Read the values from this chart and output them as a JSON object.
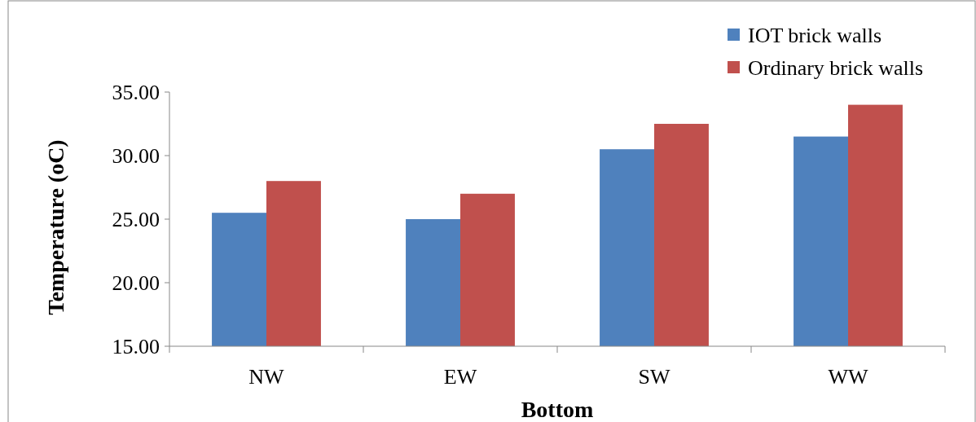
{
  "chart_data": {
    "type": "bar",
    "xlabel": "Bottom",
    "ylabel": "Temperature (oC)",
    "categories": [
      "NW",
      "EW",
      "SW",
      "WW"
    ],
    "series": [
      {
        "name": "IOT brick walls",
        "color": "#4f81bd",
        "values": [
          25.5,
          25,
          30.5,
          31.5
        ]
      },
      {
        "name": "Ordinary brick walls",
        "color": "#c0504d",
        "values": [
          28,
          27,
          32.5,
          34
        ]
      }
    ],
    "ylim": [
      15,
      35
    ],
    "yticks": [
      {
        "value": 15,
        "label": "15.00"
      },
      {
        "value": 20,
        "label": "20.00"
      },
      {
        "value": 25,
        "label": "25.00"
      },
      {
        "value": 30,
        "label": "30.00"
      },
      {
        "value": 35,
        "label": "35.00"
      }
    ],
    "grid": false,
    "legend": "top right"
  }
}
